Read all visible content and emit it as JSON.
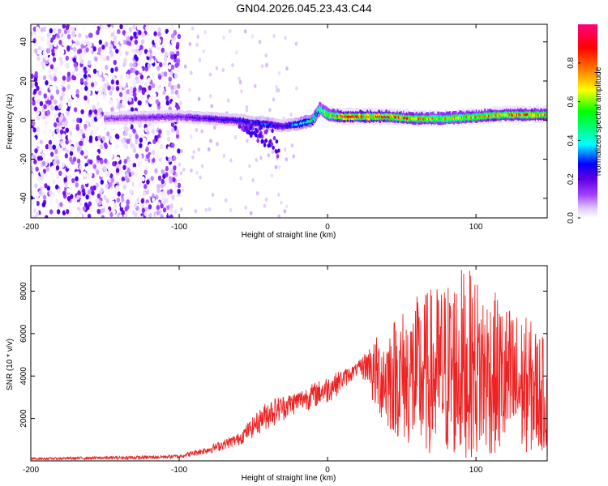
{
  "figure": {
    "title": "GN04.2026.045.23.43.C44"
  },
  "chart_data": [
    {
      "type": "heatmap",
      "name": "spectrogram",
      "xlabel": "Height of straight line (km)",
      "ylabel": "Frequency (Hz)",
      "xlim": [
        -200,
        148
      ],
      "ylim": [
        -50,
        49
      ],
      "xticks": [
        -200,
        -100,
        0,
        100
      ],
      "yticks": [
        -40,
        -20,
        0,
        20,
        40
      ],
      "colorbar": {
        "label": "Normalized spectral amplitude",
        "range": [
          0,
          1
        ],
        "ticks": [
          0.0,
          0.2,
          0.4,
          0.6,
          0.8
        ],
        "colormap": [
          "#ffffff",
          "#e0c8ff",
          "#a040ff",
          "#6000e0",
          "#0000ff",
          "#00ffff",
          "#00ff80",
          "#00ff00",
          "#ffff00",
          "#ff8000",
          "#ff0000",
          "#ff0080"
        ]
      },
      "ridge": {
        "description_points_km": [
          -150,
          -100,
          -60,
          -40,
          -30,
          -20,
          -10,
          -5,
          0,
          10,
          40,
          60,
          80,
          100,
          120,
          148
        ],
        "frequency_hz": [
          1,
          2,
          0,
          -2,
          -3,
          -2,
          0,
          6,
          3,
          2,
          2,
          1,
          1,
          2,
          3,
          3
        ],
        "amplitude": [
          0.2,
          0.25,
          0.35,
          0.4,
          0.3,
          0.45,
          0.55,
          0.6,
          0.7,
          0.95,
          0.9,
          0.8,
          0.75,
          0.8,
          0.85,
          0.85
        ]
      },
      "noise_region_km": [
        -200,
        -100
      ]
    },
    {
      "type": "line",
      "name": "snr",
      "xlabel": "Height of straight line (km)",
      "ylabel": "SNR (10 * v/v)",
      "xlim": [
        -200,
        148
      ],
      "ylim": [
        0,
        9200
      ],
      "xticks": [
        -200,
        -100,
        0,
        100
      ],
      "yticks": [
        2000,
        4000,
        6000,
        8000
      ],
      "color": "#ee2222",
      "envelope": {
        "x": [
          -200,
          -120,
          -100,
          -80,
          -60,
          -40,
          -20,
          0,
          20,
          40,
          60,
          80,
          90,
          100,
          120,
          140,
          148
        ],
        "upper": [
          150,
          250,
          300,
          700,
          1300,
          2900,
          3300,
          4000,
          4600,
          6600,
          7800,
          8600,
          9200,
          8800,
          7500,
          6500,
          5500
        ],
        "lower": [
          0,
          0,
          50,
          200,
          500,
          1000,
          1900,
          2200,
          3800,
          1500,
          400,
          150,
          100,
          200,
          300,
          400,
          500
        ]
      }
    }
  ]
}
